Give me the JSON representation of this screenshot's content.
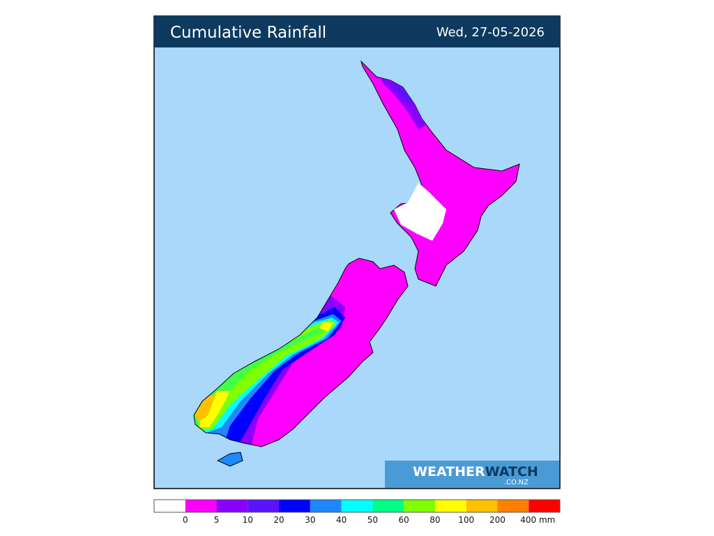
{
  "header": {
    "title": "Cumulative Rainfall",
    "date": "Wed, 27-05-2026"
  },
  "logo": {
    "brand_first": "WEATHER",
    "brand_second": "WATCH",
    "domain": ".CO.NZ"
  },
  "legend": {
    "colors": [
      "#ffffff",
      "#ff00ff",
      "#8a00ff",
      "#5a12ff",
      "#0000ff",
      "#1e88ff",
      "#00ffff",
      "#00ff88",
      "#80ff00",
      "#ffff00",
      "#ffc000",
      "#ff8000",
      "#ff0000"
    ],
    "labels": [
      "0",
      "5",
      "10",
      "20",
      "30",
      "40",
      "50",
      "60",
      "80",
      "100",
      "200",
      "400 mm"
    ]
  }
}
